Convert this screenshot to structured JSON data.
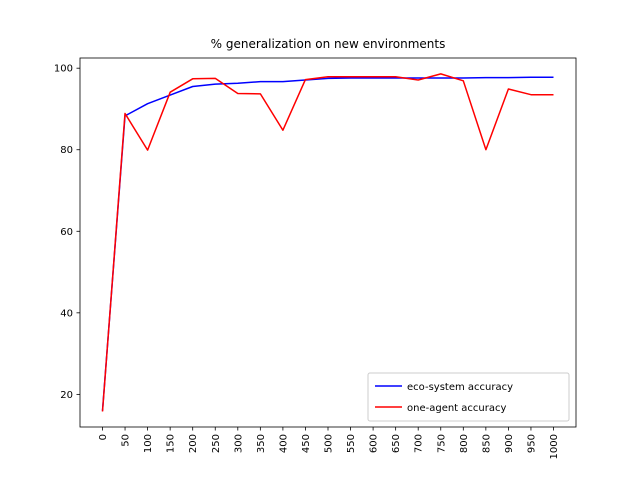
{
  "chart_data": {
    "type": "line",
    "title": "% generalization on new environments",
    "xlabel": "",
    "ylabel": "",
    "categories": [
      "0",
      "50",
      "100",
      "150",
      "200",
      "250",
      "300",
      "350",
      "400",
      "450",
      "500",
      "550",
      "600",
      "650",
      "700",
      "750",
      "800",
      "850",
      "900",
      "950",
      "1000"
    ],
    "yticks": [
      20,
      40,
      60,
      80,
      100
    ],
    "ylim": [
      12,
      102.5
    ],
    "grid": false,
    "legend_position": "lower-right",
    "series": [
      {
        "name": "eco-system accuracy",
        "color": "#0000ff",
        "values": [
          16.0,
          88.3,
          91.3,
          93.4,
          95.5,
          96.1,
          96.3,
          96.7,
          96.7,
          97.1,
          97.5,
          97.6,
          97.6,
          97.6,
          97.6,
          97.6,
          97.6,
          97.7,
          97.7,
          97.8,
          97.8
        ]
      },
      {
        "name": "one-agent accuracy",
        "color": "#ff0000",
        "values": [
          15.8,
          88.9,
          79.9,
          94.1,
          97.4,
          97.5,
          93.8,
          93.7,
          84.8,
          97.2,
          97.9,
          97.9,
          97.9,
          97.9,
          97.1,
          98.6,
          96.9,
          80.0,
          94.9,
          93.5,
          93.5
        ]
      }
    ]
  }
}
